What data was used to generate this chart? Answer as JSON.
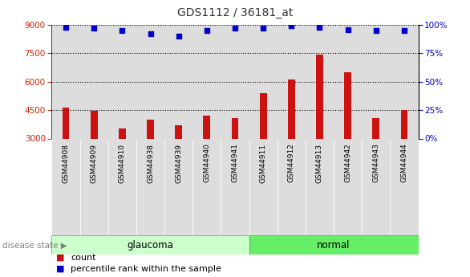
{
  "title": "GDS1112 / 36181_at",
  "samples": [
    "GSM44908",
    "GSM44909",
    "GSM44910",
    "GSM44938",
    "GSM44939",
    "GSM44940",
    "GSM44941",
    "GSM44911",
    "GSM44912",
    "GSM44913",
    "GSM44942",
    "GSM44943",
    "GSM44944"
  ],
  "counts": [
    4650,
    4450,
    3550,
    4000,
    3700,
    4200,
    4100,
    5400,
    6100,
    7450,
    6500,
    4100,
    4500
  ],
  "percentiles": [
    98,
    97,
    95,
    92,
    90,
    95,
    97,
    97,
    99,
    98,
    96,
    95,
    95
  ],
  "groups": [
    "glaucoma",
    "glaucoma",
    "glaucoma",
    "glaucoma",
    "glaucoma",
    "glaucoma",
    "glaucoma",
    "normal",
    "normal",
    "normal",
    "normal",
    "normal",
    "normal"
  ],
  "ylim_left": [
    3000,
    9000
  ],
  "ylim_right": [
    0,
    100
  ],
  "yticks_left": [
    3000,
    4500,
    6000,
    7500,
    9000
  ],
  "yticks_right": [
    0,
    25,
    50,
    75,
    100
  ],
  "bar_color": "#CC1111",
  "dot_color": "#0000CC",
  "glaucoma_color": "#CCFFCC",
  "normal_color": "#66EE66",
  "col_bg_color": "#DDDDDD",
  "grid_color": "#000000",
  "title_color": "#333333",
  "left_tick_color": "#CC2200",
  "right_tick_color": "#0000CC",
  "bar_bottom": 3000,
  "legend_count_label": "count",
  "legend_pct_label": "percentile rank within the sample",
  "disease_state_label": "disease state"
}
